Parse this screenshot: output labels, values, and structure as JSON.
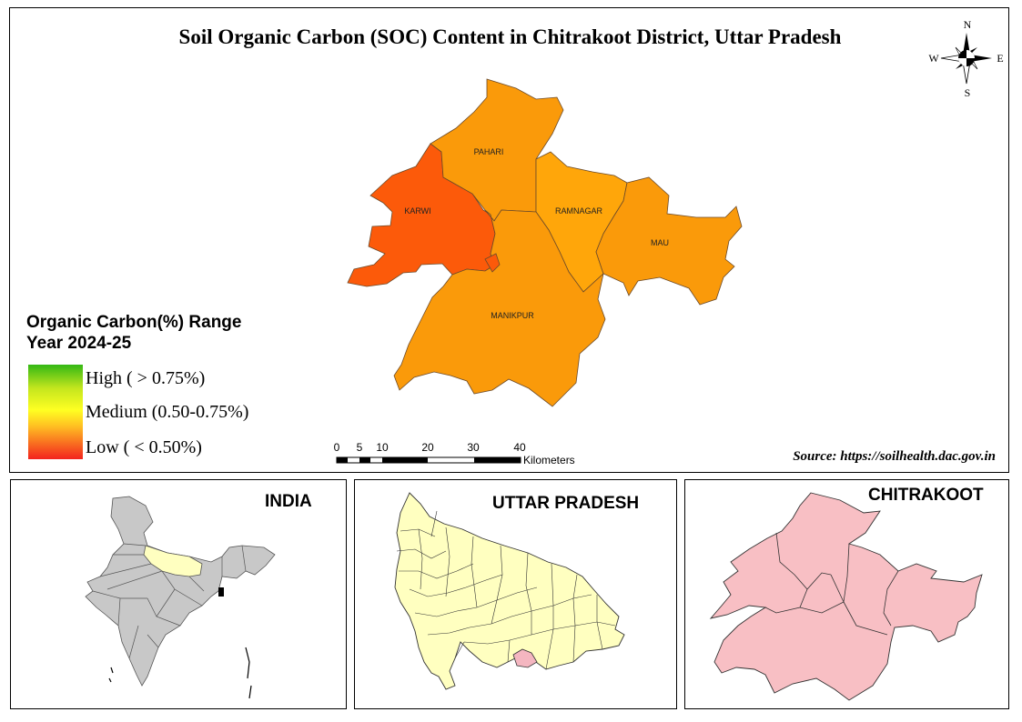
{
  "title": "Soil Organic Carbon (SOC) Content in Chitrakoot District, Uttar Pradesh",
  "compass": {
    "n": "N",
    "s": "S",
    "e": "E",
    "w": "W"
  },
  "blocks": [
    {
      "name": "KARWI",
      "soc_class": "Low",
      "color": "#fc5a0a"
    },
    {
      "name": "PAHARI",
      "soc_class": "Medium-Low",
      "color": "#fa9a0a"
    },
    {
      "name": "RAMNAGAR",
      "soc_class": "Medium-Low",
      "color": "#ffa60a"
    },
    {
      "name": "MAU",
      "soc_class": "Medium-Low",
      "color": "#fa9a0a"
    },
    {
      "name": "MANIKPUR",
      "soc_class": "Medium-Low",
      "color": "#fa9a0a"
    }
  ],
  "legend": {
    "title_line1": "Organic Carbon(%) Range",
    "title_line2": "Year 2024-25",
    "items": [
      {
        "label": "High ( > 0.75%)",
        "color": "#33b814"
      },
      {
        "label": "Medium  (0.50-0.75%)",
        "color": "#ffff22"
      },
      {
        "label": "Low ( < 0.50%)",
        "color": "#f3231e"
      }
    ]
  },
  "scalebar": {
    "ticks": [
      "0",
      "5",
      "10",
      "20",
      "30",
      "40"
    ],
    "unit": "Kilometers"
  },
  "source": "Source: https://soilhealth.dac.gov.in",
  "insets": {
    "india": {
      "title": "INDIA",
      "state_color": "#c8c8c8",
      "highlight_color": "#ffffc0"
    },
    "up": {
      "title": "UTTAR PRADESH",
      "fill": "#ffffc0",
      "highlight_color": "#f4b6c0"
    },
    "chitrakoot": {
      "title": "CHITRAKOOT",
      "fill": "#f8bfc4"
    }
  }
}
